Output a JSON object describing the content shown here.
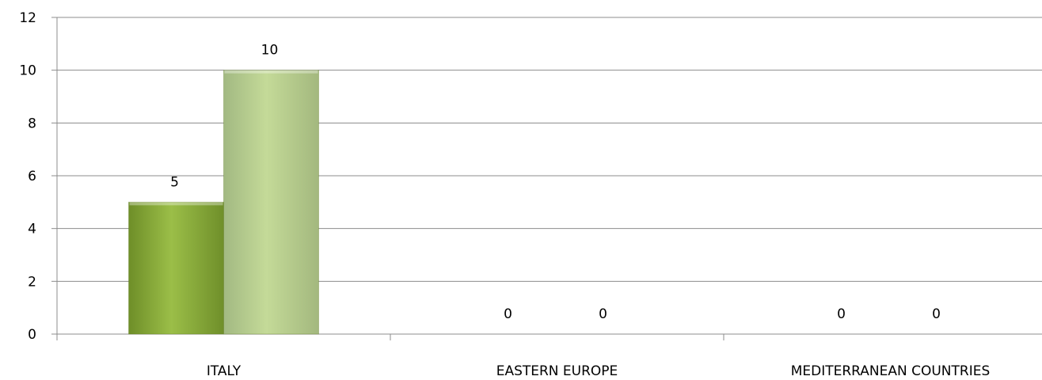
{
  "chart_data": {
    "type": "bar",
    "categories": [
      "ITALY",
      "EASTERN EUROPE",
      "MEDITERRANEAN COUNTRIES"
    ],
    "series": [
      {
        "values": [
          5,
          0,
          0
        ],
        "color": "#8DB03C"
      },
      {
        "values": [
          10,
          0,
          0
        ],
        "color": "#B3CC86"
      }
    ],
    "ylim": [
      0,
      12
    ],
    "yticks": [
      0,
      2,
      4,
      6,
      8,
      10,
      12
    ],
    "grid": true,
    "legend": "none",
    "data_labels": true
  }
}
